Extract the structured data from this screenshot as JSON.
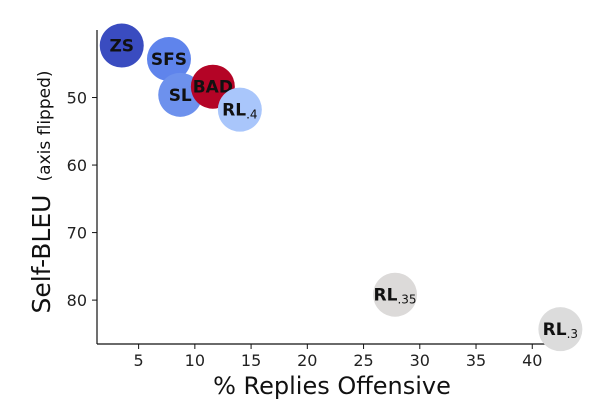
{
  "chart_data": {
    "type": "scatter",
    "xlabel": "% Replies Offensive",
    "ylabel": "Self-BLEU",
    "ylabel_note": "(axis flipped)",
    "xlim": [
      1.3,
      43.0
    ],
    "ylim": [
      40.0,
      86.5
    ],
    "y_inverted": true,
    "x_ticks": [
      5,
      10,
      15,
      20,
      25,
      30,
      35,
      40
    ],
    "y_ticks": [
      50,
      60,
      70,
      80
    ],
    "grid": false,
    "points": [
      {
        "label": "ZS",
        "suffix": "",
        "x": 3.5,
        "y": 42.3,
        "color": "#3a4cc0"
      },
      {
        "label": "SFS",
        "suffix": "",
        "x": 7.7,
        "y": 44.3,
        "color": "#5f84ec"
      },
      {
        "label": "SL",
        "suffix": "",
        "x": 8.7,
        "y": 49.6,
        "color": "#6d91ed"
      },
      {
        "label": "BAD",
        "suffix": "",
        "x": 11.6,
        "y": 48.4,
        "color": "#b40426"
      },
      {
        "label": "RL",
        "suffix": ".4",
        "x": 14.0,
        "y": 51.8,
        "color": "#a9c6fb"
      },
      {
        "label": "RL",
        "suffix": ".35",
        "x": 27.8,
        "y": 79.2,
        "color": "#dcdad9"
      },
      {
        "label": "RL",
        "suffix": ".3",
        "x": 42.5,
        "y": 84.3,
        "color": "#dcdcdc"
      }
    ]
  }
}
